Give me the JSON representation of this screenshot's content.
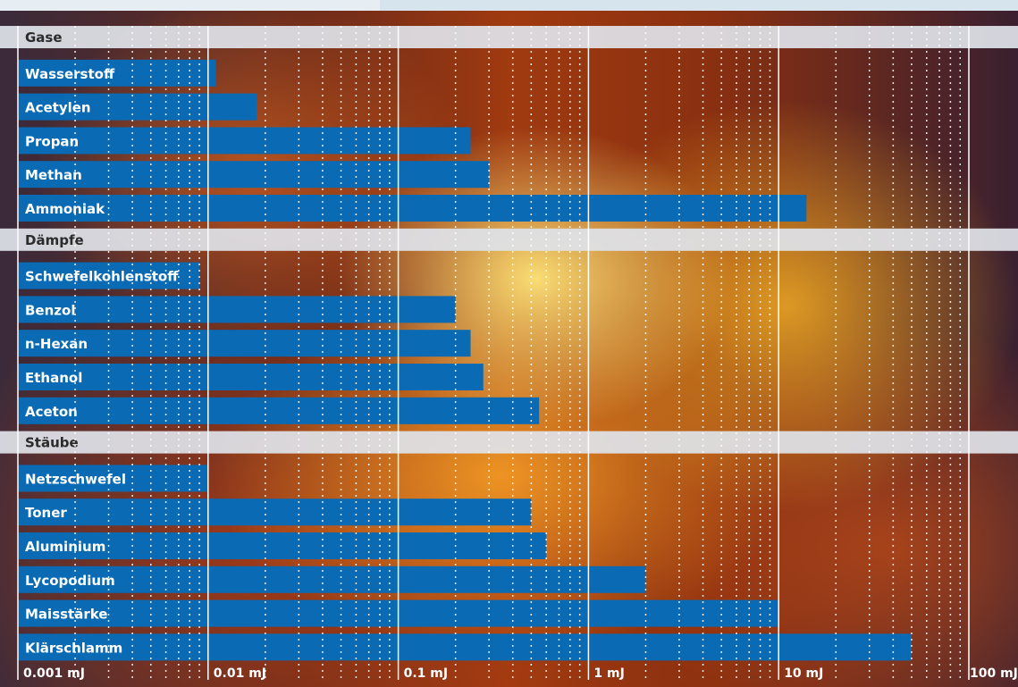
{
  "chart_data": {
    "type": "bar",
    "orientation": "horizontal",
    "x_scale": "log",
    "xlim": [
      0.001,
      100
    ],
    "grid": true,
    "x_ticks": [
      "0.001 mJ",
      "0.01 mJ",
      "0.1 mJ",
      "1 mJ",
      "10 mJ",
      "100 mJ"
    ],
    "x_tick_values": [
      0.001,
      0.01,
      0.1,
      1,
      10,
      100
    ],
    "groups": [
      {
        "name": "Gase",
        "items": [
          {
            "label": "Wasserstoff",
            "value": 0.011
          },
          {
            "label": "Acetylen",
            "value": 0.018
          },
          {
            "label": "Propan",
            "value": 0.24
          },
          {
            "label": "Methan",
            "value": 0.3
          },
          {
            "label": "Ammoniak",
            "value": 14
          }
        ]
      },
      {
        "name": "Dämpfe",
        "items": [
          {
            "label": "Schwefelkohlenstoff",
            "value": 0.009
          },
          {
            "label": "Benzol",
            "value": 0.2
          },
          {
            "label": "n-Hexan",
            "value": 0.24
          },
          {
            "label": "Ethanol",
            "value": 0.28
          },
          {
            "label": "Aceton",
            "value": 0.55
          }
        ]
      },
      {
        "name": "Stäube",
        "items": [
          {
            "label": "Netzschwefel",
            "value": 0.01
          },
          {
            "label": "Toner",
            "value": 0.5
          },
          {
            "label": "Aluminium",
            "value": 0.6
          },
          {
            "label": "Lycopodium",
            "value": 2
          },
          {
            "label": "Maisstärke",
            "value": 10
          },
          {
            "label": "Klärschlamm",
            "value": 50
          }
        ]
      }
    ],
    "colors": {
      "bar": "#0a6ab4",
      "group_band": "#dfe2e8",
      "grid": "#ffffff"
    }
  }
}
